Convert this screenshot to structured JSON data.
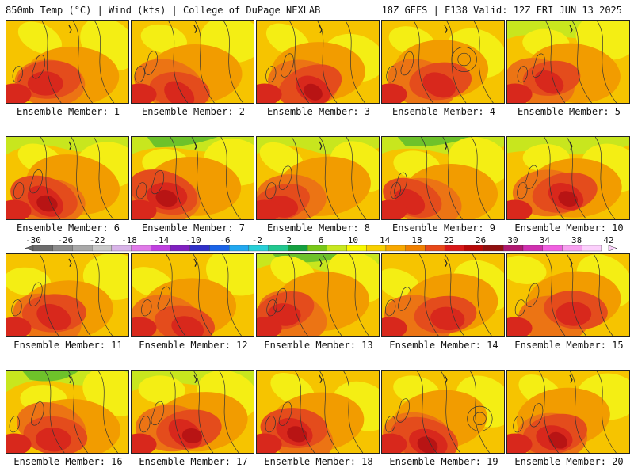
{
  "header": {
    "left": "850mb Temp (°C) | Wind (kts) | College of DuPage NEXLAB",
    "right": "18Z GEFS | F138 Valid: 12Z FRI JUN 13 2025"
  },
  "panel_label_prefix": "Ensemble Member: ",
  "members": [
    1,
    2,
    3,
    4,
    5,
    6,
    7,
    8,
    9,
    10,
    11,
    12,
    13,
    14,
    15,
    16,
    17,
    18,
    19,
    20
  ],
  "colorbar": {
    "ticks": [
      -30,
      -26,
      -22,
      -18,
      -14,
      -10,
      -6,
      -2,
      2,
      6,
      10,
      14,
      18,
      22,
      26,
      30,
      34,
      38,
      42
    ],
    "colors": [
      "#6c6c6c",
      "#8c8c8c",
      "#a8a8a8",
      "#c8c8c8",
      "#d8b4e8",
      "#e07ae8",
      "#c040e0",
      "#8020c0",
      "#3030c8",
      "#1a64e8",
      "#22a8f0",
      "#28d0d8",
      "#22c890",
      "#14a040",
      "#78c818",
      "#c8e820",
      "#f8f800",
      "#f8d000",
      "#f8a800",
      "#f08000",
      "#e84818",
      "#d81818",
      "#b80808",
      "#901010",
      "#b01870",
      "#d030b0",
      "#f060e0",
      "#f8a0f0",
      "#fcd0fc"
    ]
  },
  "fill_colors": {
    "green": "#6ec22a",
    "lime": "#c8e61e",
    "yellow": "#f4ee14",
    "gold": "#f6c400",
    "orange": "#f29c00",
    "darkorange": "#ec7414",
    "redorange": "#e44c1c",
    "red": "#d8281c",
    "deepred": "#b81414"
  }
}
